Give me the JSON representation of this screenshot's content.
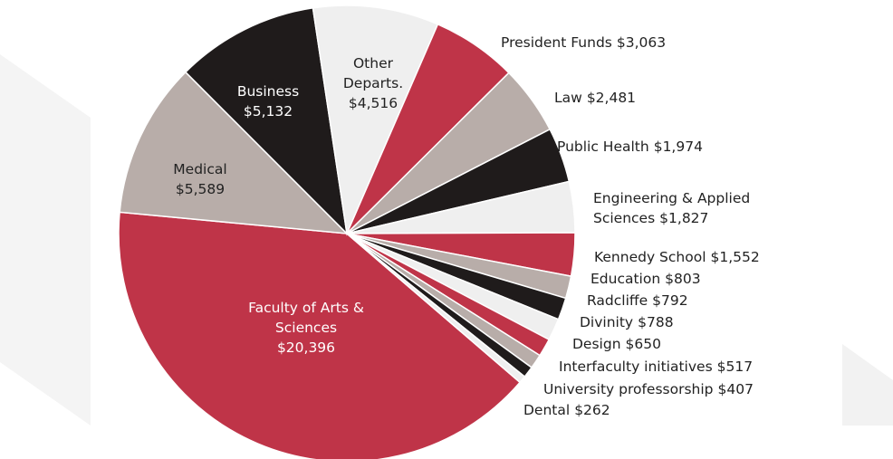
{
  "chart_data": {
    "type": "pie",
    "categories": [
      "Faculty of Arts & Sciences",
      "Medical",
      "Business",
      "Other Departs.",
      "President Funds",
      "Law",
      "Public Health",
      "Engineering & Applied Sciences",
      "Kennedy School",
      "Education",
      "Radcliffe",
      "Divinity",
      "Design",
      "Interfaculty initiatives",
      "University professorship",
      "Dental"
    ],
    "values": [
      20396,
      5589,
      5132,
      4516,
      3063,
      2481,
      1974,
      1827,
      1552,
      803,
      792,
      788,
      650,
      517,
      407,
      262
    ],
    "value_labels": [
      "$20,396",
      "$5,589",
      "$5,132",
      "$4,516",
      "$3,063",
      "$2,481",
      "$1,974",
      "$1,827",
      "$1,552",
      "$803",
      "$792",
      "$788",
      "$650",
      "$517",
      "$407",
      "$262"
    ],
    "colors": [
      "#bf3448",
      "#b8ada9",
      "#1f1b1b",
      "#efefef",
      "#bf3448",
      "#b8ada9",
      "#1f1b1b",
      "#efefef",
      "#bf3448",
      "#b8ada9",
      "#1f1b1b",
      "#efefef",
      "#bf3448",
      "#b8ada9",
      "#1f1b1b",
      "#efefef"
    ]
  }
}
